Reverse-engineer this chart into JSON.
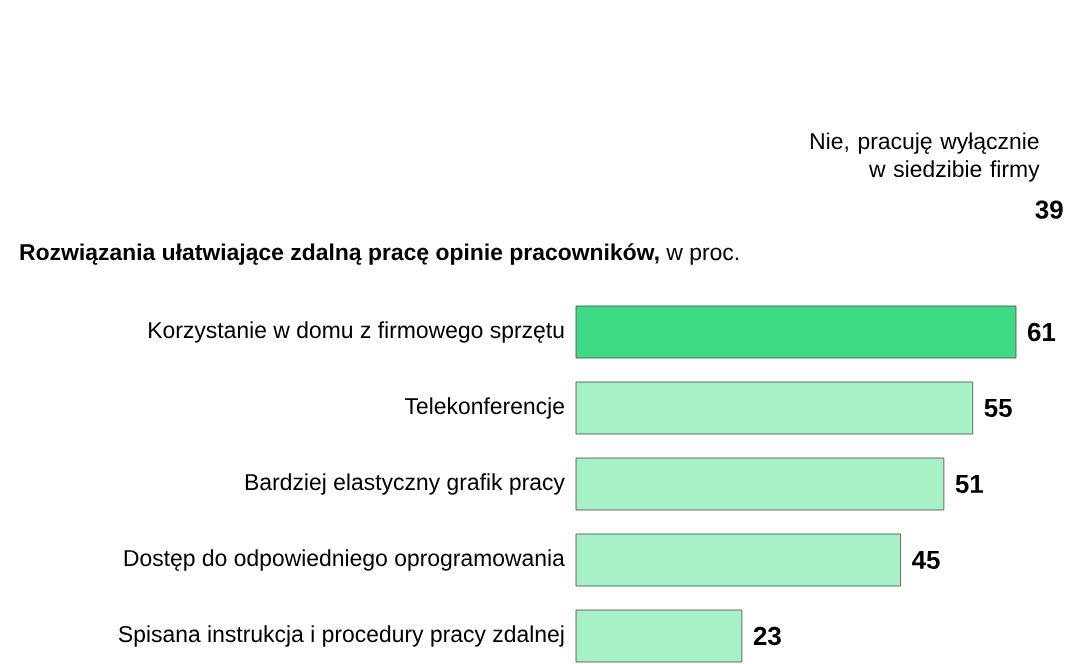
{
  "chart_data": {
    "type": "bar",
    "orientation": "horizontal",
    "data_labels": true,
    "title": "**Rozwiązania ułatwiające zdalną pracę opinie pracowników,** w proc.",
    "categories": [
      "Korzystanie w domu z firmowego sprzętu",
      "Telekonferencje",
      "Bardziej elastyczny grafik pracy",
      "Dostęp do odpowiedniego oprogramowania",
      "Spisana instrukcja i procedury pracy zdalnej"
    ],
    "values": [
      61,
      55,
      51,
      45,
      23
    ],
    "colors": [
      "#3ddc84",
      "#a6f2c6",
      "#a6f2c6",
      "#a6f2c6",
      "#a6f2c6"
    ],
    "annotations": [
      "Nie, pracuję wyłącznie w siedzibie firmy",
      "39"
    ]
  }
}
